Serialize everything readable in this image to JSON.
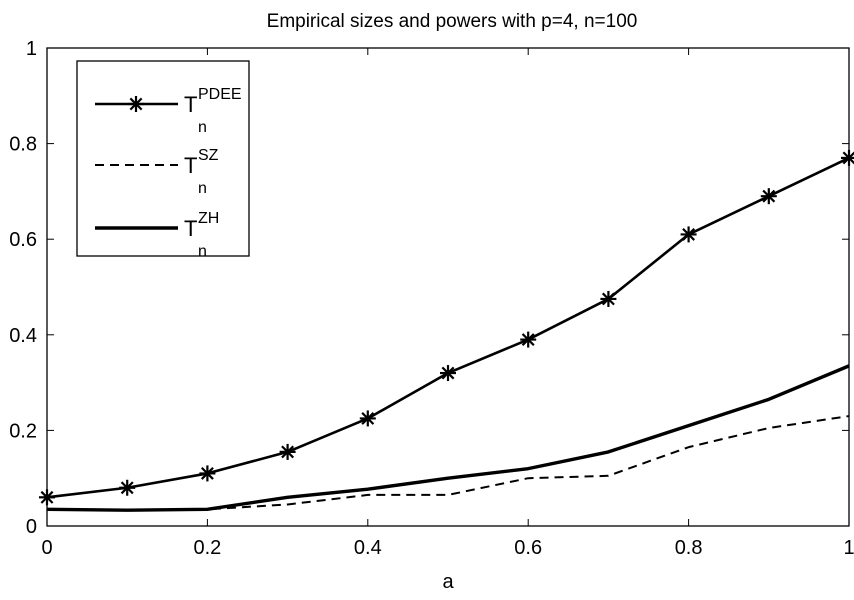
{
  "chart_data": {
    "type": "line",
    "title": "Empirical sizes and powers with p=4, n=100",
    "xlabel": "a",
    "ylabel": "",
    "xlim": [
      0,
      1
    ],
    "ylim": [
      0,
      1
    ],
    "x": [
      0,
      0.1,
      0.2,
      0.3,
      0.4,
      0.5,
      0.6,
      0.7,
      0.8,
      0.9,
      1.0
    ],
    "xticks": [
      "0",
      "0.2",
      "0.4",
      "0.6",
      "0.8",
      "1"
    ],
    "yticks": [
      "0",
      "0.2",
      "0.4",
      "0.6",
      "0.8",
      "1"
    ],
    "grid": false,
    "legend_position": "top-left",
    "series": [
      {
        "name": "T_n^PDEE",
        "legend_main": "T",
        "legend_sub": "n",
        "legend_sup": "PDEE",
        "style": "solid-star",
        "values": [
          0.06,
          0.08,
          0.11,
          0.155,
          0.225,
          0.32,
          0.39,
          0.475,
          0.61,
          0.69,
          0.77
        ]
      },
      {
        "name": "T_n^SZ",
        "legend_main": "T",
        "legend_sub": "n",
        "legend_sup": "SZ",
        "style": "dashed",
        "values": [
          0.035,
          0.033,
          0.035,
          0.045,
          0.065,
          0.065,
          0.1,
          0.105,
          0.165,
          0.205,
          0.23
        ]
      },
      {
        "name": "T_n^ZH",
        "legend_main": "T",
        "legend_sub": "n",
        "legend_sup": "ZH",
        "style": "solid-thick",
        "values": [
          0.035,
          0.033,
          0.035,
          0.06,
          0.077,
          0.1,
          0.12,
          0.155,
          0.21,
          0.265,
          0.335
        ]
      }
    ],
    "colors": {
      "line": "#000000",
      "background": "#ffffff"
    }
  }
}
